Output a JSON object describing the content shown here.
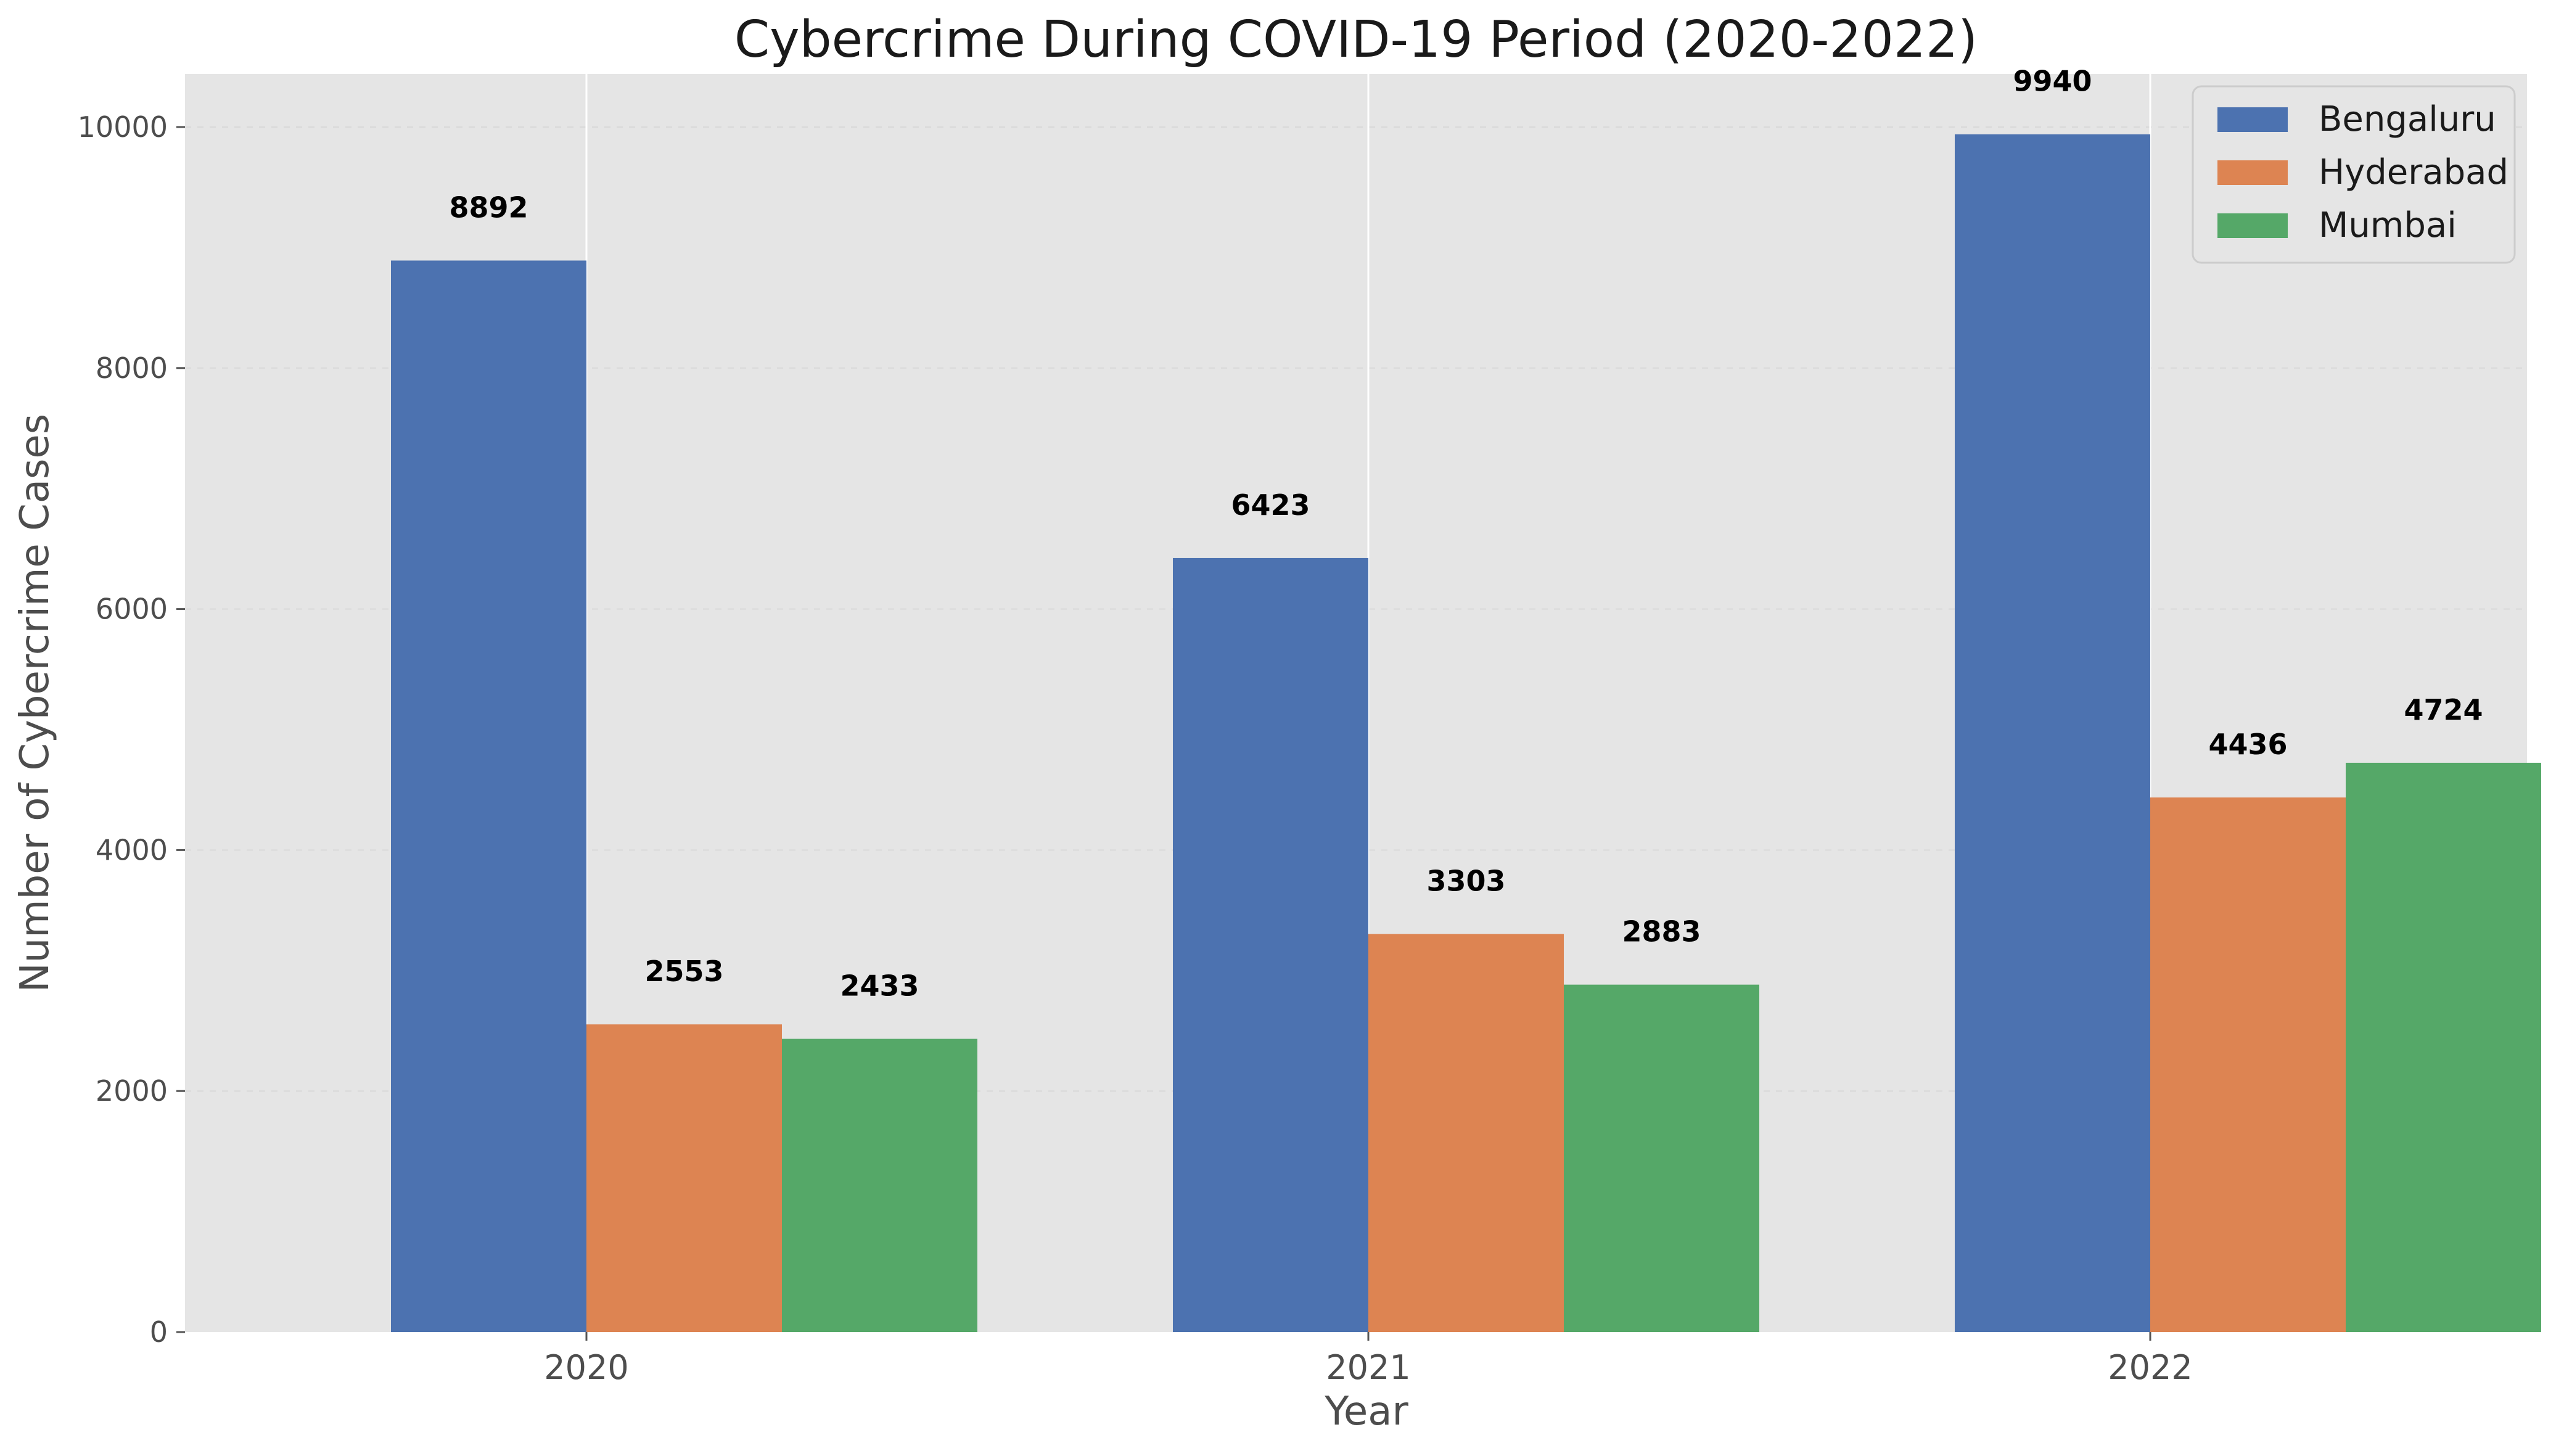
{
  "chart_data": {
    "type": "bar",
    "title": "Cybercrime During COVID-19 Period (2020-2022)",
    "xlabel": "Year",
    "ylabel": "Number of Cybercrime Cases",
    "categories": [
      "2020",
      "2021",
      "2022"
    ],
    "series": [
      {
        "name": "Bengaluru",
        "color": "#4c72b0",
        "values": [
          8892,
          6423,
          9940
        ]
      },
      {
        "name": "Hyderabad",
        "color": "#dd8452",
        "values": [
          2553,
          3303,
          4436
        ]
      },
      {
        "name": "Mumbai",
        "color": "#55a868",
        "values": [
          2433,
          2883,
          4724
        ]
      }
    ],
    "ylim": [
      0,
      10440
    ],
    "yticks": [
      0,
      2000,
      4000,
      6000,
      8000,
      10000
    ],
    "grid": true,
    "legend_position": "top-right",
    "background_color": "#e5e5e5"
  }
}
